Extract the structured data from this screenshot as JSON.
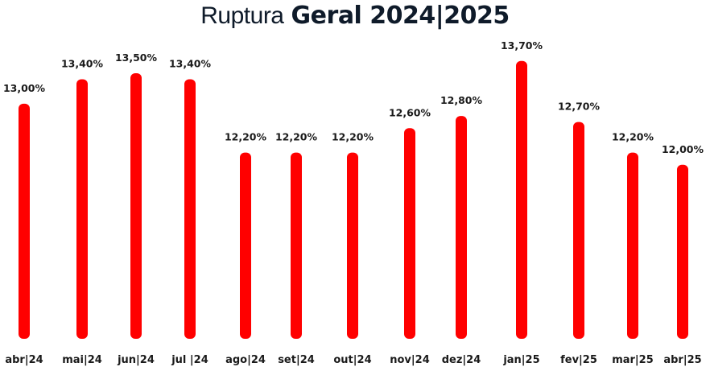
{
  "chart_data": {
    "type": "bar",
    "title_light": "Ruptura",
    "title_bold": "Geral 2024|2025",
    "categories": [
      "abr|24",
      "mai|24",
      "jun|24",
      "jul |24",
      "ago|24",
      "set|24",
      "out|24",
      "nov|24",
      "dez|24",
      "jan|25",
      "fev|25",
      "mar|25",
      "abr|25"
    ],
    "values": [
      13.0,
      13.4,
      13.5,
      13.4,
      12.2,
      12.2,
      12.2,
      12.6,
      12.8,
      13.7,
      12.7,
      12.2,
      12.0
    ],
    "value_labels": [
      "13,00%",
      "13,40%",
      "13,50%",
      "13,40%",
      "12,20%",
      "12,20%",
      "12,20%",
      "12,60%",
      "12,80%",
      "13,70%",
      "12,70%",
      "12,20%",
      "12,00%"
    ],
    "bar_color": "#ff0000",
    "ylim": [
      9.15,
      13.75
    ],
    "grid": false,
    "legend": "none"
  }
}
